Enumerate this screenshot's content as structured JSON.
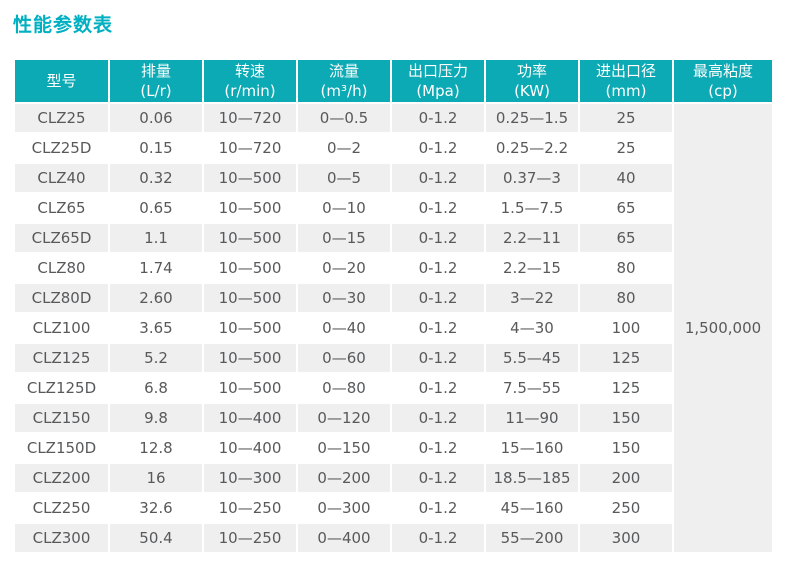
{
  "page": {
    "title": "性能参数表"
  },
  "colors": {
    "title_text": "#00b0c2",
    "header_bg": "#0caab4",
    "header_text": "#ffffff",
    "row_alt_bg": "#efefef",
    "row_bg": "#ffffff",
    "cell_text": "#58595b"
  },
  "table": {
    "columns": [
      {
        "label": "型号",
        "unit": ""
      },
      {
        "label": "排量",
        "unit": "(L/r)"
      },
      {
        "label": "转速",
        "unit": "(r/min)"
      },
      {
        "label": "流量",
        "unit": "(m³/h)"
      },
      {
        "label": "出口压力",
        "unit": "(Mpa)"
      },
      {
        "label": "功率",
        "unit": "(KW)"
      },
      {
        "label": "进出口径",
        "unit": "(mm)"
      },
      {
        "label": "最高粘度",
        "unit": "(cp)"
      }
    ],
    "rows": [
      [
        "CLZ25",
        "0.06",
        "10—720",
        "0—0.5",
        "0-1.2",
        "0.25—1.5",
        "25"
      ],
      [
        "CLZ25D",
        "0.15",
        "10—720",
        "0—2",
        "0-1.2",
        "0.25—2.2",
        "25"
      ],
      [
        "CLZ40",
        "0.32",
        "10—500",
        "0—5",
        "0-1.2",
        "0.37—3",
        "40"
      ],
      [
        "CLZ65",
        "0.65",
        "10—500",
        "0—10",
        "0-1.2",
        "1.5—7.5",
        "65"
      ],
      [
        "CLZ65D",
        "1.1",
        "10—500",
        "0—15",
        "0-1.2",
        "2.2—11",
        "65"
      ],
      [
        "CLZ80",
        "1.74",
        "10—500",
        "0—20",
        "0-1.2",
        "2.2—15",
        "80"
      ],
      [
        "CLZ80D",
        "2.60",
        "10—500",
        "0—30",
        "0-1.2",
        "3—22",
        "80"
      ],
      [
        "CLZ100",
        "3.65",
        "10—500",
        "0—40",
        "0-1.2",
        "4—30",
        "100"
      ],
      [
        "CLZ125",
        "5.2",
        "10—500",
        "0—60",
        "0-1.2",
        "5.5—45",
        "125"
      ],
      [
        "CLZ125D",
        "6.8",
        "10—500",
        "0—80",
        "0-1.2",
        "7.5—55",
        "125"
      ],
      [
        "CLZ150",
        "9.8",
        "10—400",
        "0—120",
        "0-1.2",
        "11—90",
        "150"
      ],
      [
        "CLZ150D",
        "12.8",
        "10—400",
        "0—150",
        "0-1.2",
        "15—160",
        "150"
      ],
      [
        "CLZ200",
        "16",
        "10—300",
        "0—200",
        "0-1.2",
        "18.5—185",
        "200"
      ],
      [
        "CLZ250",
        "32.6",
        "10—250",
        "0—300",
        "0-1.2",
        "45—160",
        "250"
      ],
      [
        "CLZ300",
        "50.4",
        "10—250",
        "0—400",
        "0-1.2",
        "55—200",
        "300"
      ]
    ],
    "max_viscosity": "1,500,000"
  }
}
